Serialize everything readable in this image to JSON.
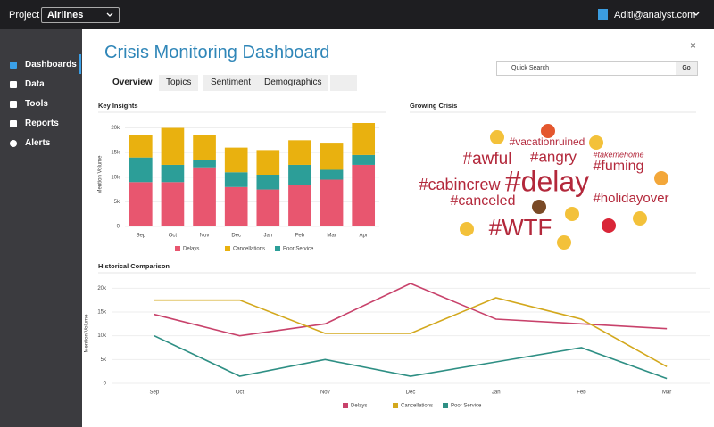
{
  "top_bar": {
    "project_label": "Project",
    "project": "Airlines",
    "user": "Aditi@analyst.com"
  },
  "sidebar": {
    "items": [
      "Dashboards",
      "Data",
      "Tools",
      "Reports",
      "Alerts"
    ]
  },
  "header": {
    "title": "Crisis Monitoring Dashboard",
    "close": "×",
    "tabs": [
      "Overview",
      "Topics",
      "Sentiment",
      "Demographics"
    ],
    "search_placeholder": "Quick Search",
    "search_button": "Go"
  },
  "key_insights": {
    "type": "bar",
    "stacked": true,
    "title": "Key Insights",
    "y_label": "Mention Volume",
    "categories": [
      "Sep",
      "Oct",
      "Nov",
      "Dec",
      "Jan",
      "Feb",
      "Mar",
      "Apr"
    ],
    "series": [
      {
        "name": "Delays",
        "color": "#e8566f",
        "values": [
          9000,
          9000,
          12000,
          8000,
          7500,
          8500,
          9500,
          12500
        ]
      },
      {
        "name": "Cancellations",
        "color": "#e9b10f",
        "values": [
          4500,
          7500,
          5000,
          5000,
          5000,
          5000,
          5500,
          6500
        ]
      },
      {
        "name": "Poor Service",
        "color": "#2c9e98",
        "values": [
          5000,
          3500,
          1500,
          3000,
          3000,
          4000,
          2000,
          2000
        ]
      }
    ],
    "ylim": [
      0,
      21000
    ],
    "yticks": [
      0,
      {
        "value": 5000,
        "label": "5k"
      },
      {
        "value": 10000,
        "label": "10k"
      },
      {
        "value": 15000,
        "label": "15k"
      },
      {
        "value": 20000,
        "label": "20k"
      }
    ],
    "grid": true
  },
  "growing_crisis": {
    "title": "Growing Crisis",
    "words": [
      "#vacationruined",
      "#awful",
      "#angry",
      "#fuming",
      "#takemehome",
      "#cabincrew",
      "#delay",
      "#holidayover",
      "#canceled",
      "#WTF"
    ]
  },
  "historical_comparison": {
    "type": "line",
    "title": "Historical Comparison",
    "y_label": "Mention Volume",
    "categories": [
      "Sep",
      "Oct",
      "Nov",
      "Dec",
      "Jan",
      "Feb",
      "Mar"
    ],
    "series": [
      {
        "name": "Delays",
        "color": "#c8426b",
        "values": [
          14500,
          10000,
          12500,
          21000,
          13500,
          12500,
          11500
        ]
      },
      {
        "name": "Cancellations",
        "color": "#d3a81d",
        "values": [
          17500,
          17500,
          10500,
          10500,
          18000,
          13500,
          3500
        ]
      },
      {
        "name": "Poor Service",
        "color": "#2e8f84",
        "values": [
          10000,
          1500,
          5000,
          1500,
          4500,
          7500,
          1000
        ]
      }
    ],
    "ylim": [
      0,
      21000
    ],
    "yticks": [
      0,
      {
        "value": 5000,
        "label": "5k"
      },
      {
        "value": 10000,
        "label": "10k"
      },
      {
        "value": 15000,
        "label": "15k"
      },
      {
        "value": 20000,
        "label": "20k"
      }
    ],
    "grid": true
  }
}
